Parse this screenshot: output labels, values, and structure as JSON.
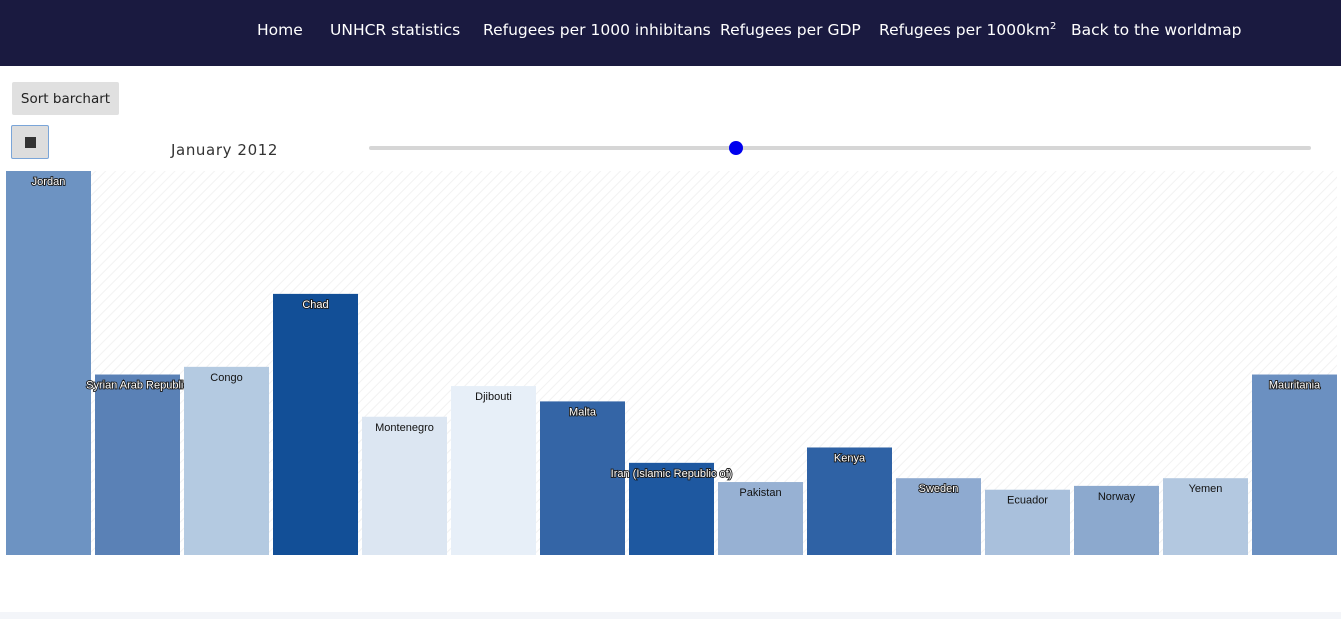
{
  "nav": {
    "items": [
      {
        "label": "Home"
      },
      {
        "label": "UNHCR statistics"
      },
      {
        "label": "Refugees per 1000 inhibitans"
      },
      {
        "label": "Refugees per GDP"
      },
      {
        "label": "Refugees per 1000km",
        "sup": "2"
      },
      {
        "label": "Back to the worldmap"
      }
    ]
  },
  "controls": {
    "sort_label": "Sort barchart",
    "stop_icon": "stop-icon",
    "date_label": "January 2012",
    "slider_fraction": 0.39
  },
  "colors": {
    "nav_bg": "#1a1a40",
    "slider_thumb": "#0000ee"
  },
  "chart_data": {
    "type": "bar",
    "title": "",
    "xlabel": "",
    "ylabel": "",
    "categories": [
      "Jordan",
      "Syrian Arab Republic",
      "Congo",
      "Chad",
      "Montenegro",
      "Djibouti",
      "Malta",
      "Iran (Islamic Republic of)",
      "Pakistan",
      "Kenya",
      "Sweden",
      "Ecuador",
      "Norway",
      "Yemen",
      "Mauritania"
    ],
    "values": [
      100,
      47,
      49,
      68,
      36,
      44,
      40,
      24,
      19,
      28,
      20,
      17,
      18,
      20,
      47
    ],
    "colors": [
      "#6d93c2",
      "#5a81b6",
      "#b4cae1",
      "#124f97",
      "#dce6f2",
      "#e7eff8",
      "#3465a6",
      "#1e58a0",
      "#97b1d3",
      "#2f62a5",
      "#8eaad0",
      "#a9c0dc",
      "#8ca9ce",
      "#b3c8e0",
      "#6b90c1"
    ],
    "label_colors": [
      "#ffffff",
      "#ffffff",
      "#111111",
      "#ffffff",
      "#111111",
      "#111111",
      "#ffffff",
      "#ffffff",
      "#111111",
      "#ffffff",
      "#ffffff",
      "#111111",
      "#111111",
      "#111111",
      "#ffffff"
    ],
    "ylim": [
      0,
      100
    ],
    "grid": false,
    "legend": "none"
  }
}
